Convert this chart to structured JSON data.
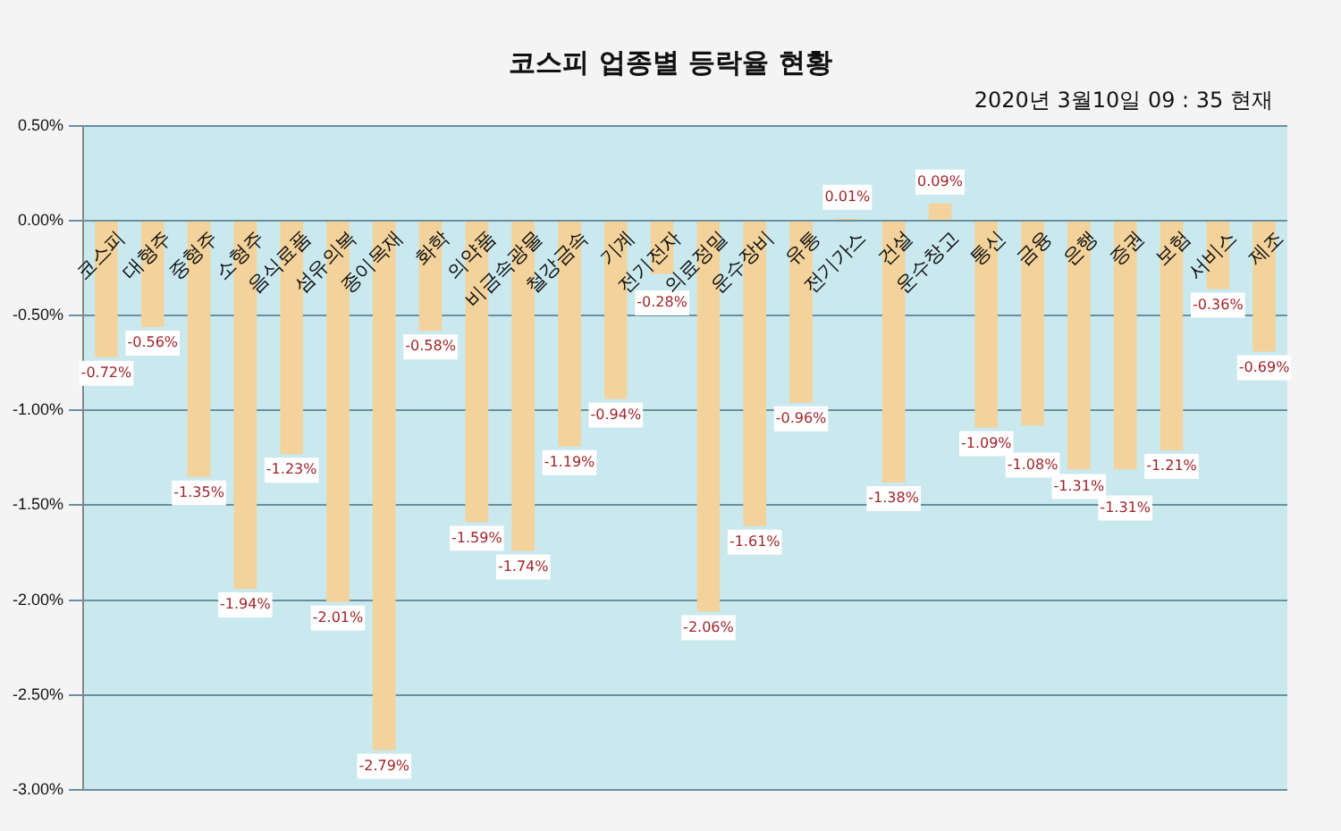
{
  "chart_data": {
    "type": "bar",
    "title": "코스피 업종별 등락율 현황",
    "subtitle": "2020년 3월10일 09 : 35 현재",
    "categories": [
      "코스피",
      "대형주",
      "중형주",
      "소형주",
      "음식료품",
      "섬유의복",
      "종이목재",
      "화학",
      "의약품",
      "비금속광물",
      "철강금속",
      "기계",
      "전기전자",
      "의료정밀",
      "운수장비",
      "유통",
      "전기가스",
      "건설",
      "운수창고",
      "통신",
      "금융",
      "은행",
      "증권",
      "보험",
      "서비스",
      "제조"
    ],
    "values": [
      -0.72,
      -0.56,
      -1.35,
      -1.94,
      -1.23,
      -2.01,
      -2.79,
      -0.58,
      -1.59,
      -1.74,
      -1.19,
      -0.94,
      -0.28,
      -2.06,
      -1.61,
      -0.96,
      0.01,
      -1.38,
      0.09,
      -1.09,
      -1.08,
      -1.31,
      -1.31,
      -1.21,
      -0.36,
      -0.69
    ],
    "value_labels": [
      "-0.72%",
      "-0.56%",
      "-1.35%",
      "-1.94%",
      "-1.23%",
      "-2.01%",
      "-2.79%",
      "-0.58%",
      "-1.59%",
      "-1.74%",
      "-1.19%",
      "-0.94%",
      "-0.28%",
      "-2.06%",
      "-1.61%",
      "-0.96%",
      "0.01%",
      "-1.38%",
      "0.09%",
      "-1.09%",
      "-1.08%",
      "-1.31%",
      "-1.31%",
      "-1.21%",
      "-0.36%",
      "-0.69%"
    ],
    "color": "#f3d39b",
    "ylim": [
      -3,
      0.5
    ],
    "yticks": [
      {
        "value": -3,
        "label": "-3.00%"
      },
      {
        "value": -2.5,
        "label": "-2.50%"
      },
      {
        "value": -2,
        "label": "-2.00%"
      },
      {
        "value": -1.5,
        "label": "-1.50%"
      },
      {
        "value": -1,
        "label": "-1.00%"
      },
      {
        "value": -0.5,
        "label": "-0.50%"
      },
      {
        "value": 0,
        "label": "0.00%"
      },
      {
        "value": 0.5,
        "label": "0.50%"
      }
    ],
    "grid": "y"
  }
}
